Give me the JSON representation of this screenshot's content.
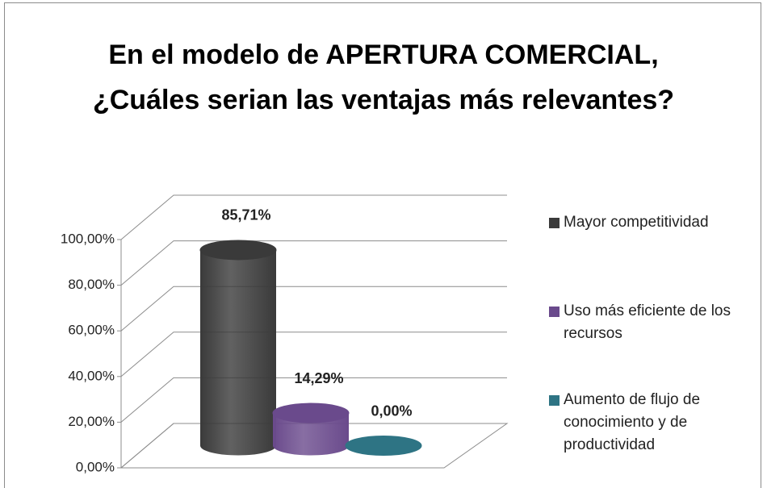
{
  "chart_data": {
    "type": "bar3d",
    "title": "En el modelo de APERTURA COMERCIAL, ¿Cuáles serian las ventajas más relevantes?",
    "series": [
      {
        "name": "Mayor competitividad",
        "color": "#3a3a3a",
        "values": [
          85.71
        ],
        "value_labels": [
          "85,71%"
        ]
      },
      {
        "name": "Uso más eficiente de los recursos",
        "color": "#6a4a8c",
        "values": [
          14.29
        ],
        "value_labels": [
          "14,29%"
        ]
      },
      {
        "name": "Aumento de flujo de conocimiento y de productividad",
        "color": "#2e7484",
        "values": [
          0
        ],
        "value_labels": [
          "0,00%"
        ]
      }
    ],
    "ylim": [
      0,
      100
    ],
    "yticks": [
      {
        "value": 0,
        "label": "0,00%"
      },
      {
        "value": 20,
        "label": "20,00%"
      },
      {
        "value": 40,
        "label": "40,00%"
      },
      {
        "value": 60,
        "label": "60,00%"
      },
      {
        "value": 80,
        "label": "80,00%"
      },
      {
        "value": 100,
        "label": "100,00%"
      }
    ],
    "grid": true,
    "legend": "right"
  }
}
